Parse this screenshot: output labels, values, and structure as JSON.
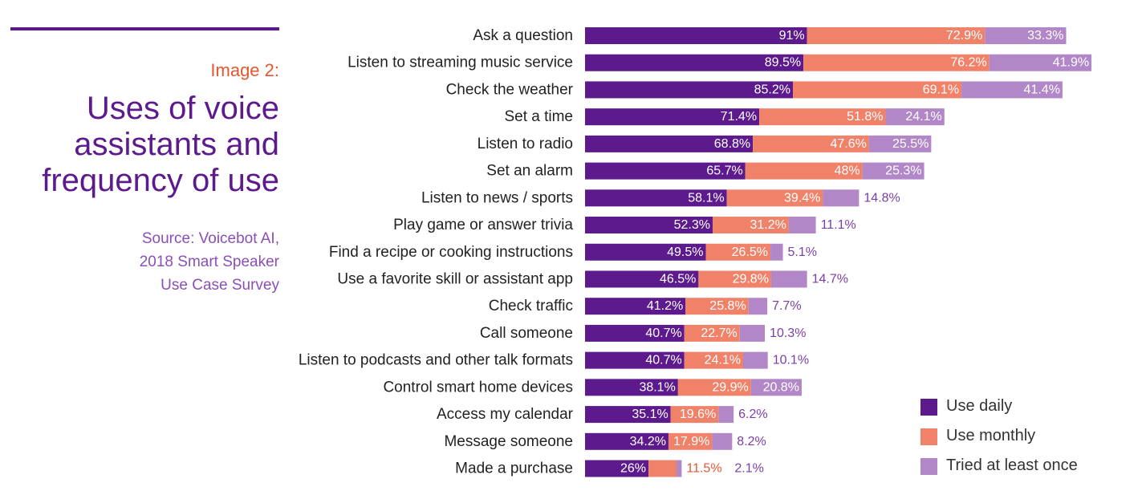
{
  "header": {
    "kicker": "Image 2:",
    "title": "Uses of voice assistants and frequency of use",
    "source_lines": [
      "Source: Voicebot AI,",
      "2018 Smart Speaker",
      "Use Case Survey"
    ]
  },
  "colors": {
    "daily": "#5c1a8c",
    "monthly": "#f0826a",
    "tried": "#b287c8",
    "accent_orange": "#e6562e",
    "accent_purple": "#5c1a8c"
  },
  "chart_data": {
    "type": "bar",
    "orientation": "horizontal",
    "stacked": true,
    "grid": false,
    "legend_position": "bottom-right",
    "categories": [
      "Ask a question",
      "Listen to streaming music service",
      "Check the weather",
      "Set a time",
      "Listen to radio",
      "Set an alarm",
      "Listen to news / sports",
      "Play game or answer trivia",
      "Find a recipe or cooking instructions",
      "Use a favorite skill or assistant app",
      "Check traffic",
      "Call someone",
      "Listen to podcasts and other talk formats",
      "Control smart home devices",
      "Access my calendar",
      "Message someone",
      "Made a purchase"
    ],
    "series": [
      {
        "name": "Use daily",
        "values": [
          91,
          89.5,
          85.2,
          71.4,
          68.8,
          65.7,
          58.1,
          52.3,
          49.5,
          46.5,
          41.2,
          40.7,
          40.7,
          38.1,
          35.1,
          34.2,
          26
        ],
        "labels": [
          "91%",
          "89.5%",
          "85.2%",
          "71.4%",
          "68.8%",
          "65.7%",
          "58.1%",
          "52.3%",
          "49.5%",
          "46.5%",
          "41.2%",
          "40.7%",
          "40.7%",
          "38.1%",
          "35.1%",
          "34.2%",
          "26%"
        ]
      },
      {
        "name": "Use monthly",
        "values": [
          72.9,
          76.2,
          69.1,
          51.8,
          47.6,
          48,
          39.4,
          31.2,
          26.5,
          29.8,
          25.8,
          22.7,
          24.1,
          29.9,
          19.6,
          17.9,
          11.5
        ],
        "labels": [
          "72.9%",
          "76.2%",
          "69.1%",
          "51.8%",
          "47.6%",
          "48%",
          "39.4%",
          "31.2%",
          "26.5%",
          "29.8%",
          "25.8%",
          "22.7%",
          "24.1%",
          "29.9%",
          "19.6%",
          "17.9%",
          "11.5%"
        ]
      },
      {
        "name": "Tried at least once",
        "values": [
          33.3,
          41.9,
          41.4,
          24.1,
          25.5,
          25.3,
          14.8,
          11.1,
          5.1,
          14.7,
          7.7,
          10.3,
          10.1,
          20.8,
          6.2,
          8.2,
          2.1
        ],
        "labels": [
          "33.3%",
          "41.9%",
          "41.4%",
          "24.1%",
          "25.5%",
          "25.3%",
          "14.8%",
          "11.1%",
          "5.1%",
          "14.7%",
          "7.7%",
          "10.3%",
          "10.1%",
          "20.8%",
          "6.2%",
          "8.2%",
          "2.1%"
        ]
      }
    ]
  }
}
